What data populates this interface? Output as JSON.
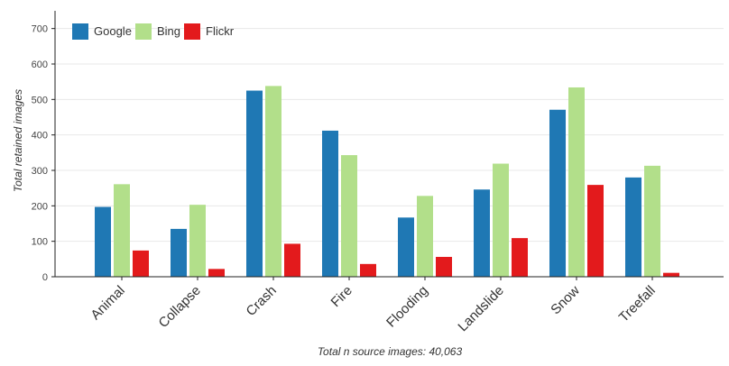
{
  "chart_data": {
    "type": "bar",
    "title": "",
    "ylabel": "Total retained images",
    "xlabel": "Total n source images: 40,063",
    "ylim": [
      0,
      750
    ],
    "yticks": [
      0,
      100,
      200,
      300,
      400,
      500,
      600,
      700
    ],
    "grid": true,
    "legend_position": "top-left",
    "categories": [
      "Animal",
      "Collapse",
      "Crash",
      "Fire",
      "Flooding",
      "Landslide",
      "Snow",
      "Treefall"
    ],
    "series": [
      {
        "name": "Google",
        "color": "#1f78b4",
        "values": [
          197,
          135,
          525,
          412,
          167,
          246,
          471,
          280
        ]
      },
      {
        "name": "Bing",
        "color": "#b2df8a",
        "values": [
          261,
          203,
          538,
          343,
          228,
          319,
          534,
          313
        ]
      },
      {
        "name": "Flickr",
        "color": "#e31a1c",
        "values": [
          74,
          22,
          93,
          36,
          56,
          109,
          259,
          11
        ]
      }
    ]
  }
}
